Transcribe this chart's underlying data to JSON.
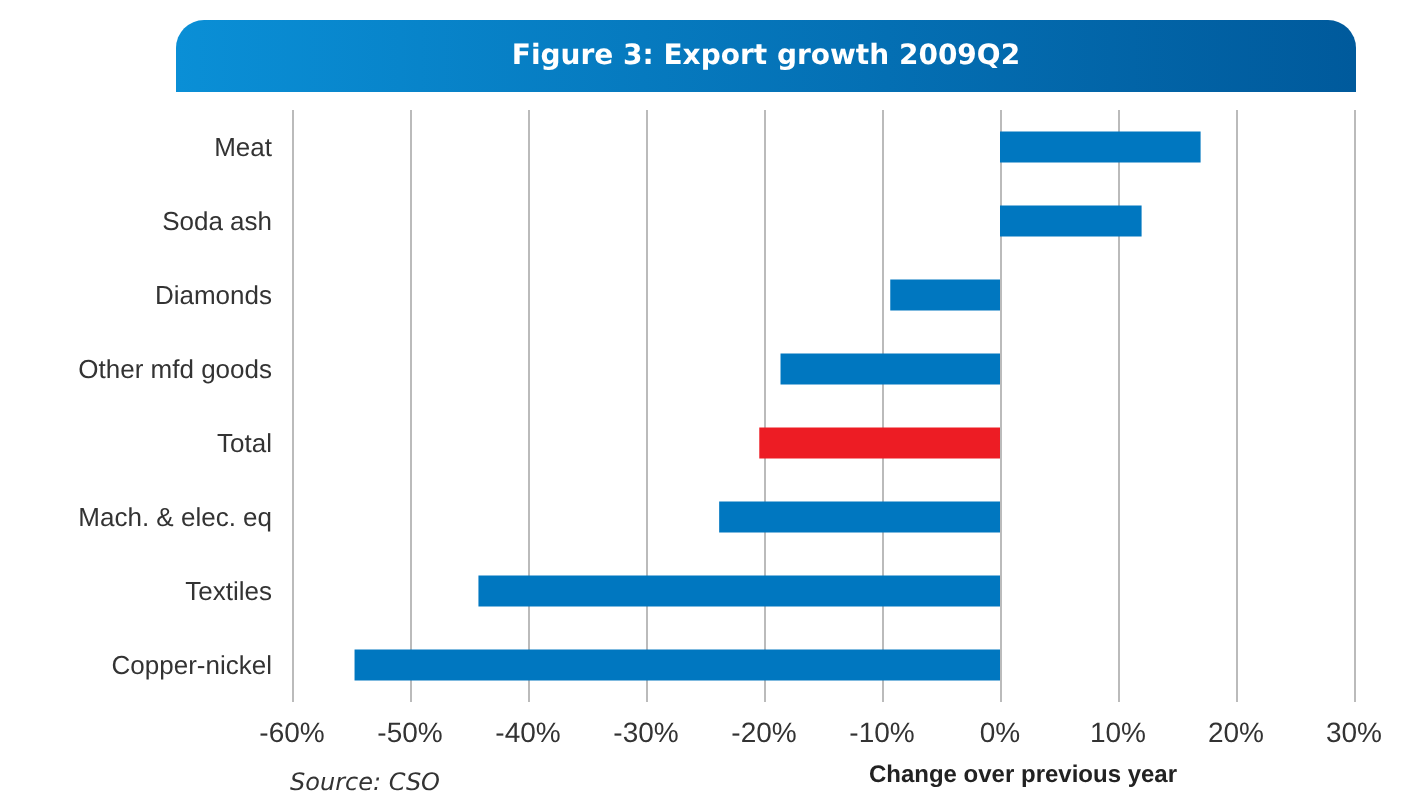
{
  "chart_data": {
    "type": "bar",
    "orientation": "horizontal",
    "title": "Figure 3: Export growth 2009Q2",
    "xlabel": "Change over previous year",
    "annotations": [
      "Source: CSO"
    ],
    "categories": [
      "Meat",
      "Soda ash",
      "Diamonds",
      "Other mfd goods",
      "Total",
      "Mach. & elec. eq",
      "Textiles",
      "Copper-nickel"
    ],
    "values": [
      17.0,
      12.0,
      -9.3,
      -18.6,
      -20.4,
      -23.8,
      -44.2,
      -54.7
    ],
    "colors": [
      "#0077c0",
      "#0077c0",
      "#0077c0",
      "#0077c0",
      "#ed1c24",
      "#0077c0",
      "#0077c0",
      "#0077c0"
    ],
    "xlim": [
      -60,
      30
    ],
    "xticks": [
      {
        "value": -60,
        "label": "-60%"
      },
      {
        "value": -50,
        "label": "-50%"
      },
      {
        "value": -40,
        "label": "-40%"
      },
      {
        "value": -30,
        "label": "-30%"
      },
      {
        "value": -20,
        "label": "-20%"
      },
      {
        "value": -10,
        "label": "-10%"
      },
      {
        "value": 0,
        "label": "0%"
      },
      {
        "value": 10,
        "label": "10%"
      },
      {
        "value": 20,
        "label": "20%"
      },
      {
        "value": 30,
        "label": "30%"
      }
    ],
    "grid": "x"
  }
}
